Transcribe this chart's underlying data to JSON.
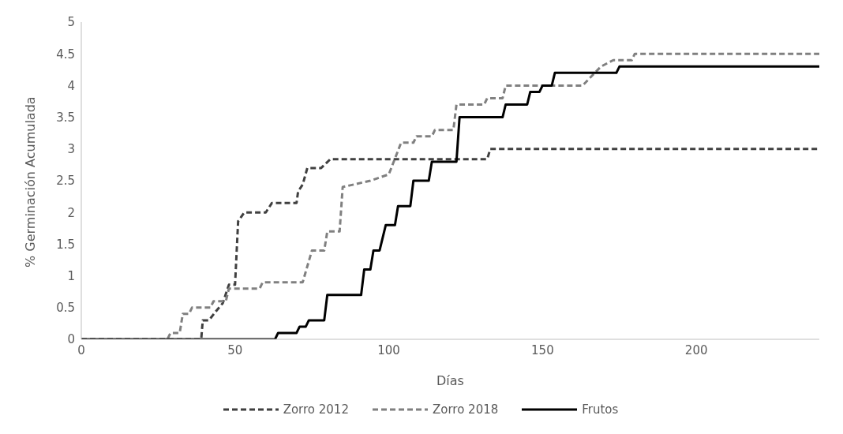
{
  "chart_data": {
    "type": "line",
    "xlabel": "Días",
    "ylabel": "% Germinación Acumulada",
    "xlim": [
      0,
      240
    ],
    "xticks": [
      0,
      50,
      100,
      150,
      200
    ],
    "ylim": [
      0,
      5
    ],
    "yticks": [
      0,
      0.5,
      1,
      1.5,
      2,
      2.5,
      3,
      3.5,
      4,
      4.5,
      5
    ],
    "grid": false,
    "legend": "bottom",
    "marker": "none",
    "series": [
      {
        "name": "Zorro 2012",
        "color": "#404040",
        "line_style": "dashed",
        "x": [
          0,
          39,
          39.5,
          41.5,
          43.6,
          46,
          48,
          50,
          51,
          53,
          60,
          62,
          70,
          70.5,
          72,
          73.5,
          78,
          81,
          132,
          133,
          240
        ],
        "values": [
          0,
          0,
          0.3,
          0.3,
          0.43,
          0.57,
          0.86,
          0.86,
          1.86,
          2,
          2,
          2.15,
          2.15,
          2.33,
          2.44,
          2.7,
          2.7,
          2.84,
          2.84,
          3,
          3
        ]
      },
      {
        "name": "Zorro 2018",
        "color": "#808080",
        "line_style": "dashed",
        "x": [
          0,
          28,
          29,
          32,
          33,
          35,
          36,
          42,
          43,
          47,
          48,
          58,
          59,
          72,
          75,
          79,
          80,
          84,
          85,
          94,
          100,
          104,
          108,
          109,
          114,
          115,
          121,
          122,
          131,
          132,
          137,
          138,
          163,
          165,
          169,
          173,
          179,
          180,
          240
        ],
        "values": [
          0,
          0,
          0.1,
          0.1,
          0.4,
          0.4,
          0.5,
          0.5,
          0.6,
          0.6,
          0.8,
          0.8,
          0.9,
          0.9,
          1.4,
          1.4,
          1.7,
          1.7,
          2.4,
          2.5,
          2.6,
          3.1,
          3.1,
          3.2,
          3.2,
          3.3,
          3.3,
          3.7,
          3.7,
          3.8,
          3.8,
          4,
          4,
          4.1,
          4.3,
          4.4,
          4.4,
          4.5,
          4.5
        ]
      },
      {
        "name": "Frutos",
        "color": "#000000",
        "line_style": "solid",
        "x": [
          0,
          63,
          64,
          70,
          71,
          73,
          74,
          79,
          80,
          91,
          92,
          94,
          95,
          97,
          99,
          102,
          103,
          107,
          108,
          113,
          114,
          122,
          123,
          137,
          138,
          145,
          146,
          149,
          150,
          153,
          154,
          174,
          175,
          240
        ],
        "values": [
          0,
          0,
          0.1,
          0.1,
          0.2,
          0.2,
          0.3,
          0.3,
          0.7,
          0.7,
          1.1,
          1.1,
          1.4,
          1.4,
          1.8,
          1.8,
          2.1,
          2.1,
          2.5,
          2.5,
          2.8,
          2.8,
          3.5,
          3.5,
          3.7,
          3.7,
          3.9,
          3.9,
          4,
          4,
          4.2,
          4.2,
          4.3,
          4.3
        ]
      }
    ]
  }
}
